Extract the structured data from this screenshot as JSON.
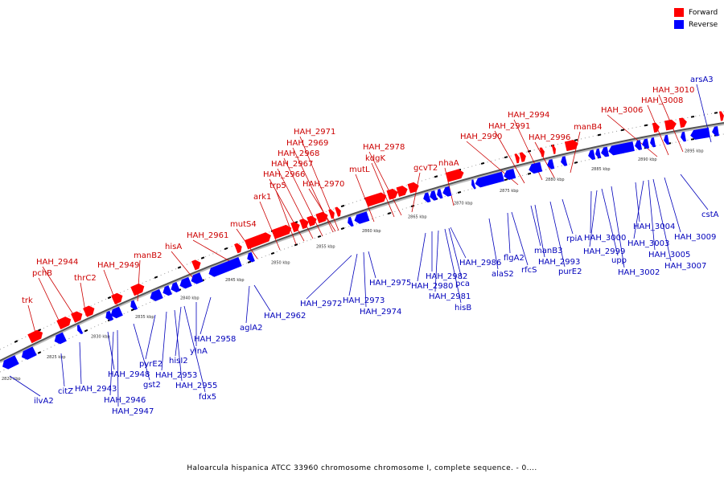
{
  "legend": {
    "forward_label": "Forward",
    "reverse_label": "Reverse",
    "forward_color": "#ff0000",
    "reverse_color": "#0000ff"
  },
  "caption": "Haloarcula hispanica ATCC 33960 chromosome chromosome I, complete sequence. - 0....",
  "ticks": [
    "2820 kbp",
    "2825 kbp",
    "2830 kbp",
    "2835 kbp",
    "2840 kbp",
    "2845 kbp",
    "2850 kbp",
    "2855 kbp",
    "2860 kbp",
    "2865 kbp",
    "2870 kbp",
    "2875 kbp",
    "2880 kbp",
    "2885 kbp",
    "2890 kbp",
    "2895 kbp"
  ],
  "forward_genes": [
    "trk",
    "pchB",
    "HAH_2944",
    "thrC2",
    "HAH_2949",
    "manB2",
    "hisA",
    "HAH_2961",
    "mutS4",
    "ark1",
    "trp5",
    "HAH_2966",
    "HAH_2967",
    "HAH_2968",
    "HAH_2969",
    "HAH_2971",
    "HAH_2970",
    "mutL",
    "kdgK",
    "HAH_2978",
    "gcvT2",
    "nhaA",
    "HAH_2990",
    "HAH_2991",
    "HAH_2994",
    "HAH_2996",
    "manB4",
    "HAH_3006",
    "HAH_3008",
    "HAH_3010"
  ],
  "reverse_genes": [
    "ilvA2",
    "citZ",
    "HAH_2943",
    "HAH_2948",
    "HAH_2946",
    "HAH_2947",
    "gst2",
    "pyrE2",
    "HAH_2953",
    "HAH_2955",
    "fdx5",
    "hisI2",
    "ylnA",
    "HAH_2958",
    "aglA2",
    "HAH_2962",
    "HAH_2972",
    "HAH_2973",
    "HAH_2974",
    "HAH_2975",
    "HAH_2980",
    "HAH_2982",
    "HAH_2981",
    "hisB",
    "pca",
    "HAH_2986",
    "alaS2",
    "flgA2",
    "rfcS",
    "HAH_2993",
    "manB3",
    "purE2",
    "rpiA",
    "HAH_3000",
    "HAH_2999",
    "upp",
    "HAH_3002",
    "HAH_3004",
    "HAH_3003",
    "HAH_3005",
    "HAH_3007",
    "HAH_3009",
    "cstA",
    "arsA3"
  ]
}
